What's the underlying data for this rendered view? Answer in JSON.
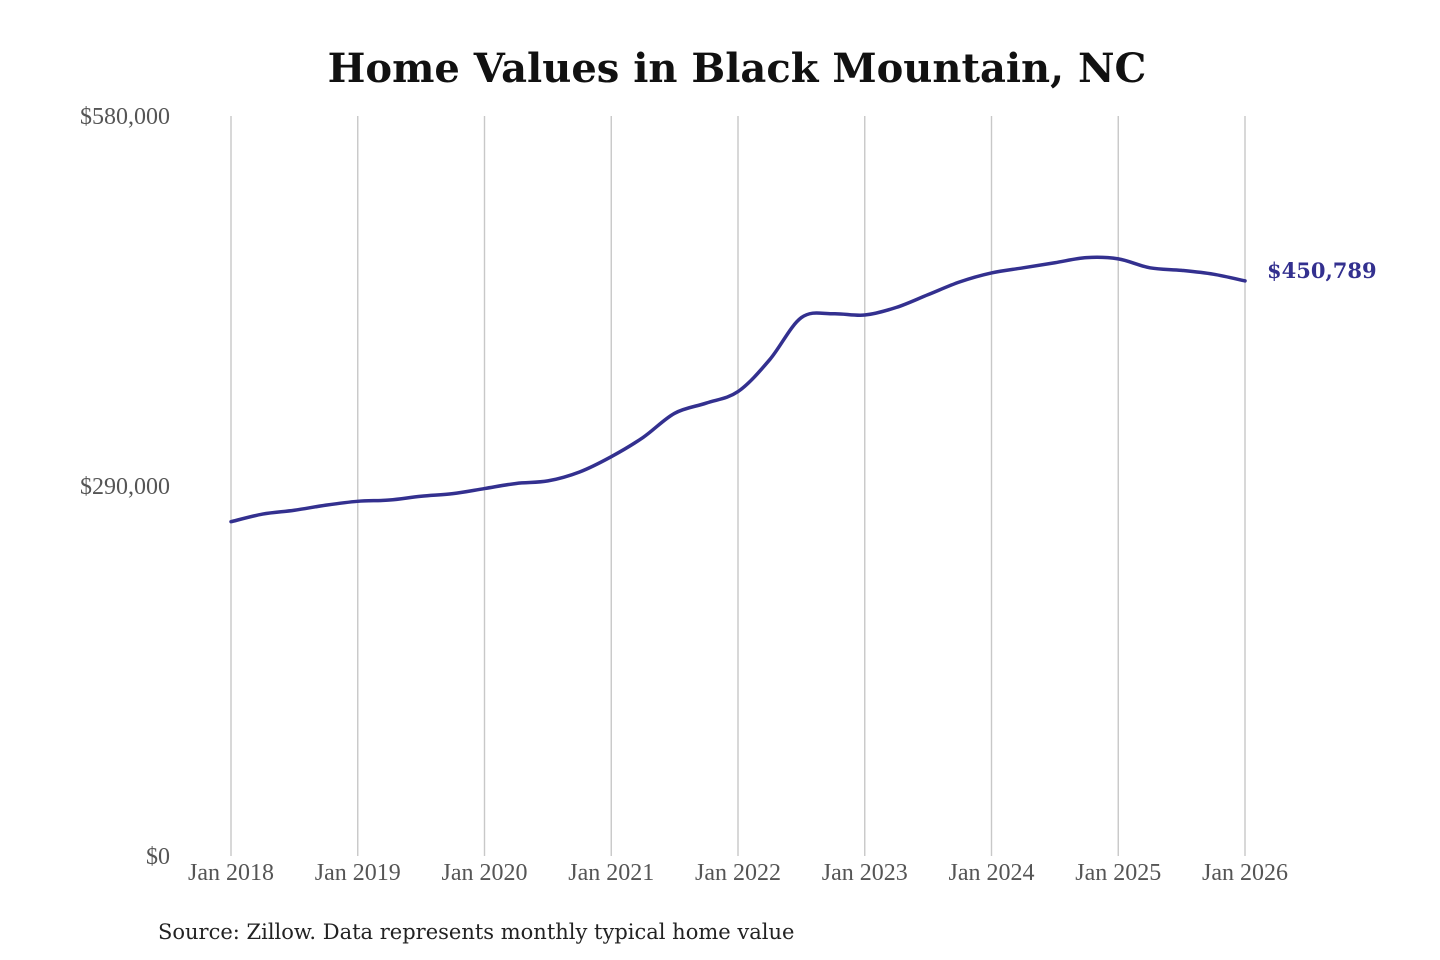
{
  "chart_data": {
    "type": "line",
    "title": "Home Values in Black Mountain, NC",
    "xlabel": "",
    "ylabel": "",
    "ylim": [
      0,
      580000
    ],
    "xlim": [
      "2018-01",
      "2026-01"
    ],
    "grid": {
      "vertical": true,
      "horizontal": false
    },
    "y_ticks": [
      {
        "value": 580000,
        "label": "$580,000"
      },
      {
        "value": 290000,
        "label": "$290,000"
      },
      {
        "value": 0,
        "label": "$0"
      }
    ],
    "x_ticks": [
      {
        "value": "2018-01",
        "label": "Jan 2018"
      },
      {
        "value": "2019-01",
        "label": "Jan 2019"
      },
      {
        "value": "2020-01",
        "label": "Jan 2020"
      },
      {
        "value": "2021-01",
        "label": "Jan 2021"
      },
      {
        "value": "2022-01",
        "label": "Jan 2022"
      },
      {
        "value": "2023-01",
        "label": "Jan 2023"
      },
      {
        "value": "2024-01",
        "label": "Jan 2024"
      },
      {
        "value": "2025-01",
        "label": "Jan 2025"
      },
      {
        "value": "2026-01",
        "label": "Jan 2026"
      }
    ],
    "series": [
      {
        "color": "#33308f",
        "points": [
          {
            "x": "2018-01",
            "y": 262000
          },
          {
            "x": "2018-04",
            "y": 268000
          },
          {
            "x": "2018-07",
            "y": 271000
          },
          {
            "x": "2018-10",
            "y": 275000
          },
          {
            "x": "2019-01",
            "y": 278000
          },
          {
            "x": "2019-04",
            "y": 279000
          },
          {
            "x": "2019-07",
            "y": 282000
          },
          {
            "x": "2019-10",
            "y": 284000
          },
          {
            "x": "2020-01",
            "y": 288000
          },
          {
            "x": "2020-04",
            "y": 292000
          },
          {
            "x": "2020-07",
            "y": 294000
          },
          {
            "x": "2020-10",
            "y": 301000
          },
          {
            "x": "2021-01",
            "y": 313000
          },
          {
            "x": "2021-04",
            "y": 328000
          },
          {
            "x": "2021-07",
            "y": 347000
          },
          {
            "x": "2021-10",
            "y": 355000
          },
          {
            "x": "2022-01",
            "y": 364000
          },
          {
            "x": "2022-04",
            "y": 389000
          },
          {
            "x": "2022-07",
            "y": 422000
          },
          {
            "x": "2022-10",
            "y": 425000
          },
          {
            "x": "2023-01",
            "y": 424000
          },
          {
            "x": "2023-04",
            "y": 430000
          },
          {
            "x": "2023-07",
            "y": 440000
          },
          {
            "x": "2023-10",
            "y": 450000
          },
          {
            "x": "2024-01",
            "y": 457000
          },
          {
            "x": "2024-04",
            "y": 461000
          },
          {
            "x": "2024-07",
            "y": 465000
          },
          {
            "x": "2024-10",
            "y": 469000
          },
          {
            "x": "2025-01",
            "y": 468000
          },
          {
            "x": "2025-04",
            "y": 461000
          },
          {
            "x": "2025-07",
            "y": 459000
          },
          {
            "x": "2025-10",
            "y": 456000
          },
          {
            "x": "2026-01",
            "y": 450789
          }
        ]
      }
    ],
    "end_label": "$450,789"
  },
  "footer": {
    "source": "Source: Zillow. Data represents monthly typical home value"
  }
}
